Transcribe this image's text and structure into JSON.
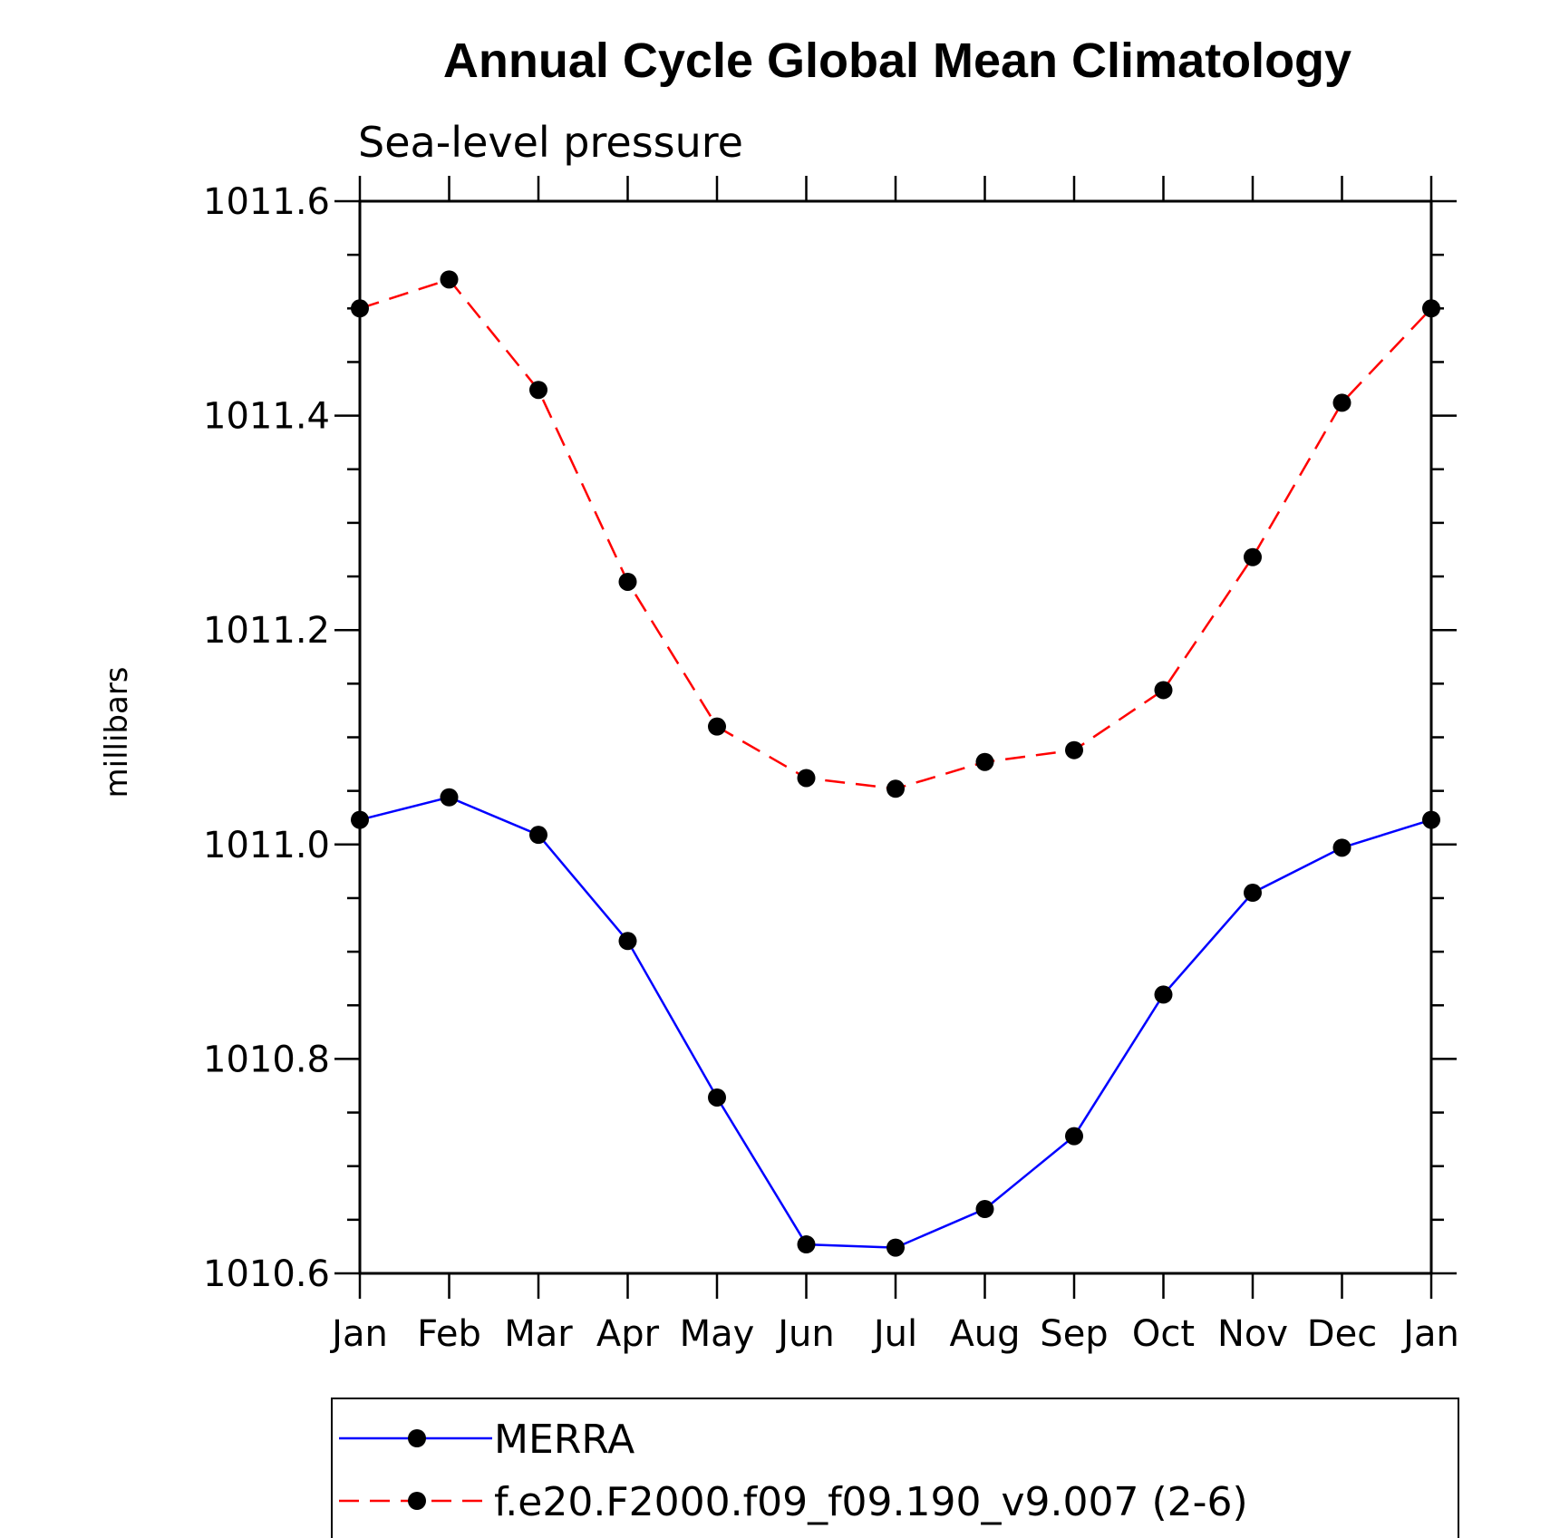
{
  "chart_data": {
    "type": "line",
    "title": "Annual Cycle Global Mean Climatology",
    "subtitle": "Sea-level pressure",
    "ylabel": "millibars",
    "xlabel": "",
    "categories": [
      "Jan",
      "Feb",
      "Mar",
      "Apr",
      "May",
      "Jun",
      "Jul",
      "Aug",
      "Sep",
      "Oct",
      "Nov",
      "Dec",
      "Jan"
    ],
    "ylim": [
      1010.6,
      1011.6
    ],
    "yticks": [
      "1010.6",
      "1010.8",
      "1011.0",
      "1011.2",
      "1011.4",
      "1011.6"
    ],
    "grid": false,
    "legend_position": "bottom",
    "series": [
      {
        "name": "MERRA",
        "color": "#0000ff",
        "dash": "solid",
        "values": [
          1011.023,
          1011.044,
          1011.009,
          1010.91,
          1010.764,
          1010.627,
          1010.624,
          1010.66,
          1010.728,
          1010.86,
          1010.955,
          1010.997,
          1011.023
        ]
      },
      {
        "name": "f.e20.F2000.f09_f09.190_v9.007 (2-6)",
        "color": "#ff0000",
        "dash": "dashed",
        "values": [
          1011.5,
          1011.527,
          1011.424,
          1011.245,
          1011.11,
          1011.062,
          1011.052,
          1011.077,
          1011.088,
          1011.144,
          1011.268,
          1011.412,
          1011.5
        ]
      }
    ]
  }
}
